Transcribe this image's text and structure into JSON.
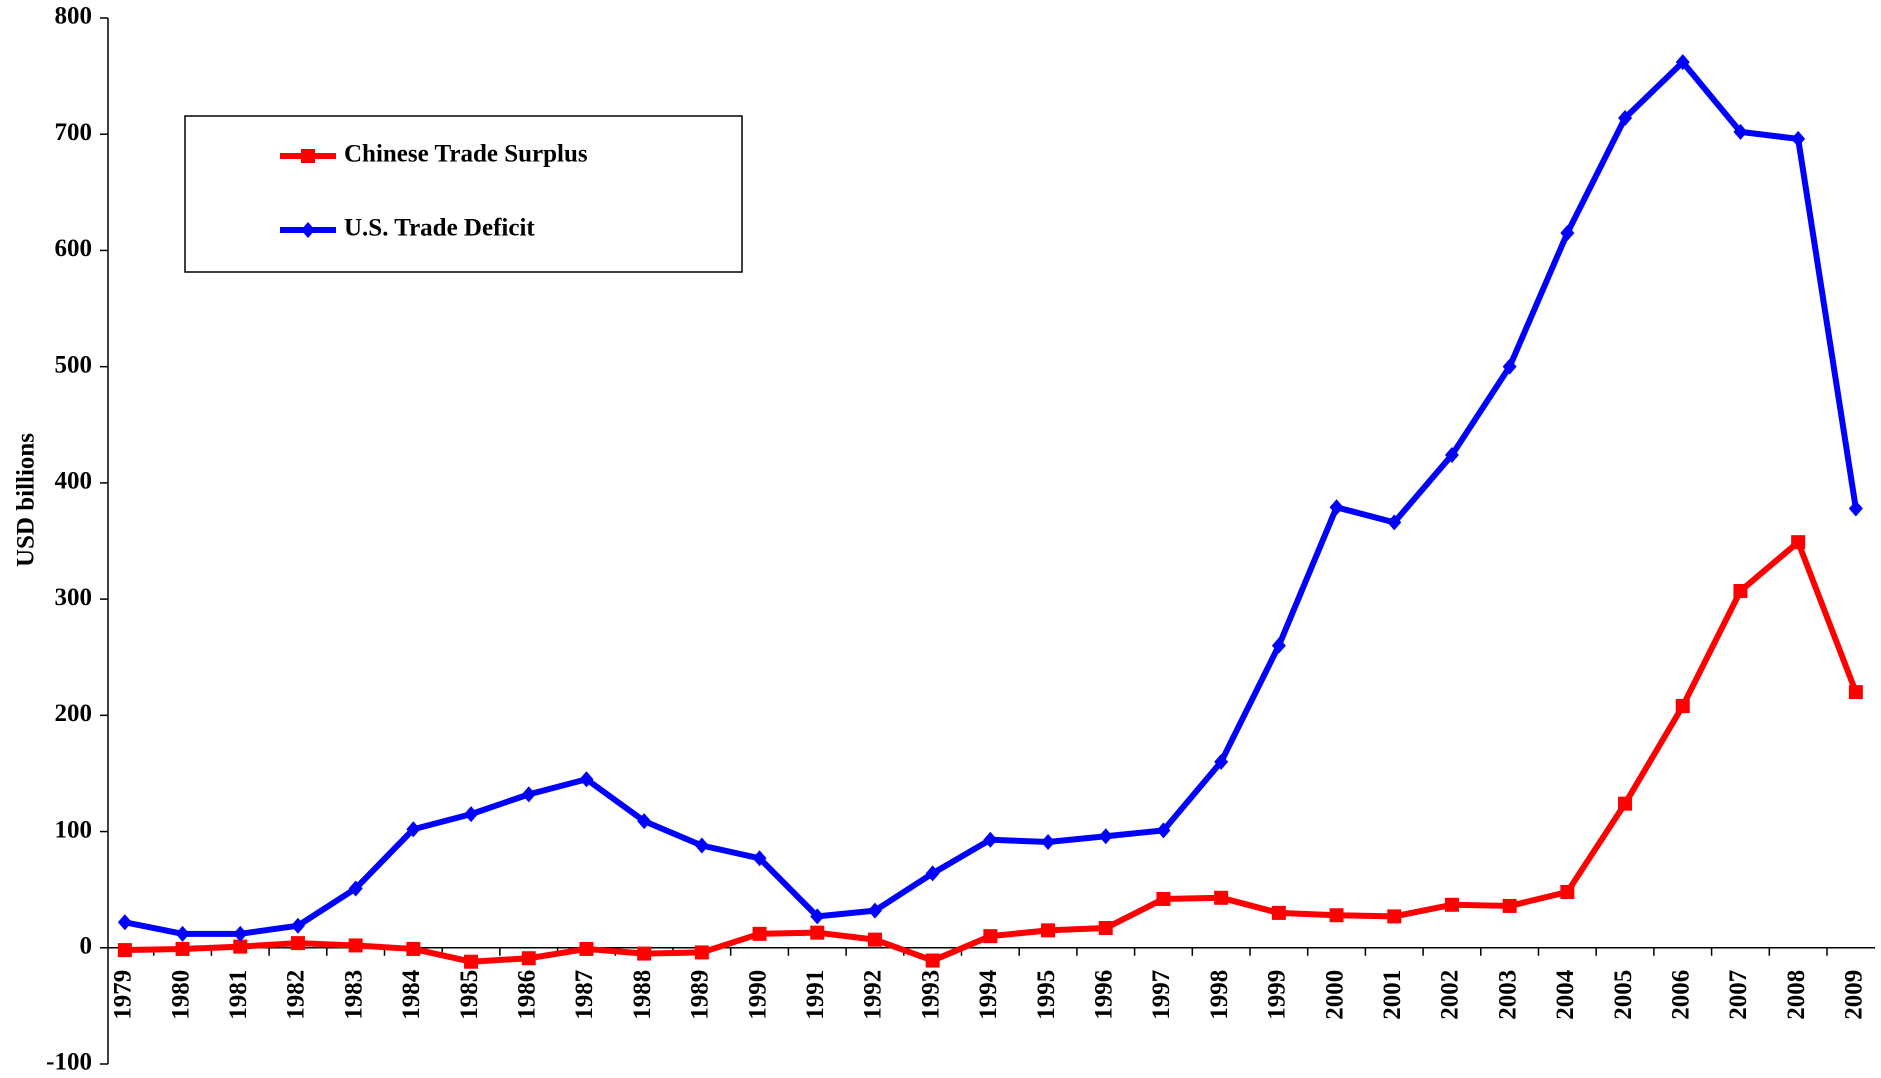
{
  "chart_data": {
    "type": "line",
    "y_label": "USD billions",
    "categories": [
      "1979",
      "1980",
      "1981",
      "1982",
      "1983",
      "1984",
      "1985",
      "1986",
      "1987",
      "1988",
      "1989",
      "1990",
      "1991",
      "1992",
      "1993",
      "1994",
      "1995",
      "1996",
      "1997",
      "1998",
      "1999",
      "2000",
      "2001",
      "2002",
      "2003",
      "2004",
      "2005",
      "2006",
      "2007",
      "2008",
      "2009"
    ],
    "series": [
      {
        "name": "Chinese Trade Surplus",
        "color": "#ff0000",
        "marker": "square",
        "values": [
          -2,
          -1,
          1,
          4,
          2,
          -1,
          -12,
          -9,
          -1,
          -5,
          -4,
          12,
          13,
          7,
          -11,
          10,
          15,
          17,
          42,
          43,
          30,
          28,
          27,
          37,
          36,
          48,
          124,
          208,
          307,
          349,
          220
        ]
      },
      {
        "name": "U.S. Trade Deficit",
        "color": "#0000ff",
        "marker": "diamond",
        "values": [
          22,
          12,
          12,
          19,
          51,
          102,
          115,
          132,
          145,
          109,
          88,
          77,
          27,
          32,
          64,
          93,
          91,
          96,
          101,
          160,
          260,
          379,
          366,
          424,
          500,
          615,
          714,
          762,
          702,
          696,
          378
        ]
      }
    ],
    "ylim": [
      -100,
      800
    ],
    "yticks": [
      -100,
      0,
      100,
      200,
      300,
      400,
      500,
      600,
      700,
      800
    ],
    "legend": "upper left",
    "grid": false
  }
}
